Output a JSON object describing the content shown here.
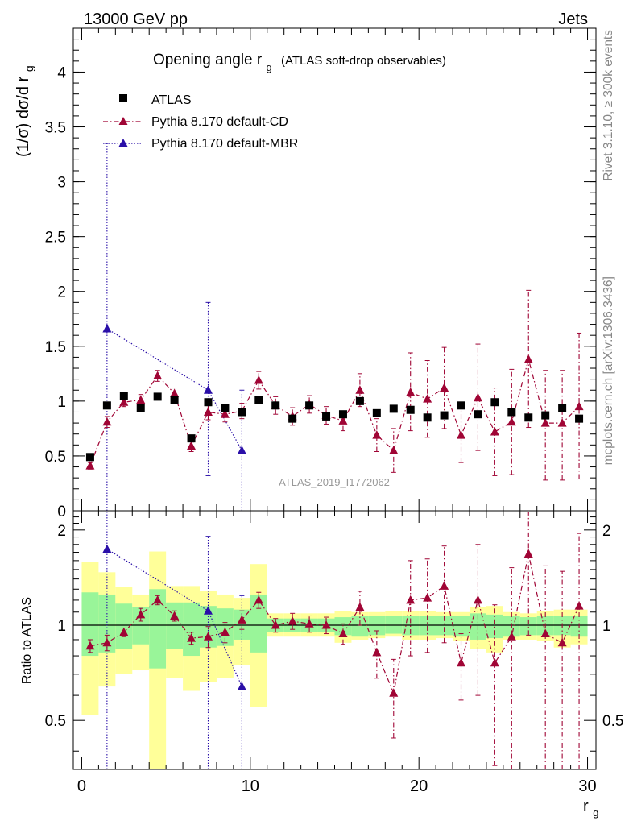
{
  "header": {
    "left_title": "13000 GeV pp",
    "right_title": "Jets",
    "side_label_top": "Rivet 3.1.10, ≥ 300k events",
    "side_label_bottom": "mcplots.cern.ch [arXiv:1306.3436]",
    "watermark": "ATLAS_2019_I1772062"
  },
  "chart_data": [
    {
      "panel": "main",
      "type": "scatter",
      "title_main": "Opening angle r",
      "title_sub": "g",
      "title_extra": "(ATLAS soft-drop observables)",
      "ylabel_main": "(1/σ) dσ/d r",
      "ylabel_sub": "g",
      "ylim": [
        0,
        4.4
      ],
      "yticks": [
        0,
        0.5,
        1,
        1.5,
        2,
        2.5,
        3,
        3.5,
        4
      ],
      "ytick_labels": [
        "0",
        "0.5",
        "1",
        "1.5",
        "2",
        "2.5",
        "3",
        "3.5",
        "4"
      ],
      "xlim": [
        -0.5,
        30.5
      ],
      "legend_position": "top-left",
      "series": [
        {
          "name": "ATLAS",
          "marker": "square",
          "color": "#000000",
          "x": [
            0.5,
            1.5,
            2.5,
            3.5,
            4.5,
            5.5,
            6.5,
            7.5,
            8.5,
            9.5,
            10.5,
            11.5,
            12.5,
            13.5,
            14.5,
            15.5,
            16.5,
            17.5,
            18.5,
            19.5,
            20.5,
            21.5,
            22.5,
            23.5,
            24.5,
            25.5,
            26.5,
            27.5,
            28.5,
            29.5
          ],
          "values": [
            0.49,
            0.96,
            1.05,
            0.94,
            1.04,
            1.01,
            0.66,
            0.99,
            0.94,
            0.9,
            1.01,
            0.96,
            0.84,
            0.96,
            0.86,
            0.88,
            1.0,
            0.89,
            0.93,
            0.92,
            0.85,
            0.87,
            0.96,
            0.88,
            0.99,
            0.9,
            0.85,
            0.87,
            0.94,
            0.84
          ]
        },
        {
          "name": "Pythia 8.170 default-CD",
          "marker": "triangle",
          "line": "dash-dot",
          "color": "#a00535",
          "x": [
            0.5,
            1.5,
            2.5,
            3.5,
            4.5,
            5.5,
            6.5,
            7.5,
            8.5,
            9.5,
            10.5,
            11.5,
            12.5,
            13.5,
            14.5,
            15.5,
            16.5,
            17.5,
            18.5,
            19.5,
            20.5,
            21.5,
            22.5,
            23.5,
            24.5,
            25.5,
            26.5,
            27.5,
            28.5,
            29.5
          ],
          "values": [
            0.41,
            0.81,
            0.99,
            1.01,
            1.23,
            1.07,
            0.59,
            0.9,
            0.88,
            0.91,
            1.19,
            0.96,
            0.86,
            0.97,
            0.87,
            0.82,
            1.1,
            0.69,
            0.55,
            1.08,
            1.02,
            1.12,
            0.69,
            1.03,
            0.72,
            0.81,
            1.38,
            0.8,
            0.8,
            0.95
          ],
          "err_low": [
            0.03,
            0.05,
            0.04,
            0.05,
            0.05,
            0.05,
            0.05,
            0.07,
            0.07,
            0.07,
            0.08,
            0.08,
            0.08,
            0.08,
            0.08,
            0.09,
            0.15,
            0.15,
            0.2,
            0.35,
            0.35,
            0.37,
            0.25,
            0.48,
            0.4,
            0.48,
            0.62,
            0.52,
            0.52,
            0.66
          ],
          "err_high": [
            0.03,
            0.05,
            0.04,
            0.05,
            0.05,
            0.05,
            0.05,
            0.07,
            0.07,
            0.07,
            0.08,
            0.08,
            0.08,
            0.08,
            0.08,
            0.09,
            0.15,
            0.15,
            0.2,
            0.36,
            0.35,
            0.37,
            0.25,
            0.49,
            0.4,
            0.48,
            0.63,
            0.48,
            0.48,
            0.67
          ]
        },
        {
          "name": "Pythia 8.170 default-MBR",
          "marker": "triangle",
          "line": "dotted",
          "color": "#2a0fa8",
          "x": [
            1.5,
            7.5,
            9.5
          ],
          "values": [
            1.66,
            1.1,
            0.55
          ],
          "err_low": [
            1.66,
            0.78,
            0.55
          ],
          "err_high": [
            1.69,
            0.8,
            0.55
          ]
        }
      ]
    },
    {
      "panel": "ratio",
      "type": "scatter",
      "ylabel": "Ratio to ATLAS",
      "ylim": [
        0.35,
        2.3
      ],
      "yscale": "log",
      "yticks": [
        0.5,
        1,
        2
      ],
      "ytick_labels": [
        "0.5",
        "1",
        "2"
      ],
      "xlim": [
        -0.5,
        30.5
      ],
      "xticks": [
        0,
        10,
        20,
        30
      ],
      "xtick_labels": [
        "0",
        "10",
        "20",
        "30"
      ],
      "xlabel_main": "r",
      "xlabel_sub": "g",
      "reference_line": 1,
      "bands": {
        "x": [
          0.5,
          1.5,
          2.5,
          3.5,
          4.5,
          5.5,
          6.5,
          7.5,
          8.5,
          9.5,
          10.5,
          11.5,
          12.5,
          13.5,
          14.5,
          15.5,
          16.5,
          17.5,
          18.5,
          19.5,
          20.5,
          21.5,
          22.5,
          23.5,
          24.5,
          25.5,
          26.5,
          27.5,
          28.5,
          29.5
        ],
        "inner_low": [
          0.8,
          0.82,
          0.84,
          0.87,
          0.73,
          0.84,
          0.8,
          0.85,
          0.86,
          0.9,
          0.82,
          0.95,
          0.95,
          0.95,
          0.95,
          0.93,
          0.92,
          0.93,
          0.94,
          0.93,
          0.93,
          0.93,
          0.92,
          0.9,
          0.91,
          0.92,
          0.93,
          0.93,
          0.93,
          0.92
        ],
        "inner_high": [
          1.27,
          1.25,
          1.17,
          1.14,
          1.3,
          1.18,
          1.18,
          1.15,
          1.13,
          1.12,
          1.25,
          1.05,
          1.05,
          1.05,
          1.05,
          1.06,
          1.07,
          1.07,
          1.07,
          1.07,
          1.07,
          1.07,
          1.07,
          1.09,
          1.08,
          1.07,
          1.06,
          1.07,
          1.07,
          1.07
        ],
        "outer_low": [
          0.52,
          0.64,
          0.7,
          0.72,
          0.35,
          0.68,
          0.62,
          0.66,
          0.68,
          0.75,
          0.55,
          0.92,
          0.92,
          0.92,
          0.92,
          0.88,
          0.9,
          0.91,
          0.92,
          0.9,
          0.9,
          0.91,
          0.89,
          0.84,
          0.82,
          0.9,
          0.9,
          0.89,
          0.85,
          0.87
        ],
        "outer_high": [
          1.58,
          1.47,
          1.32,
          1.25,
          1.71,
          1.33,
          1.33,
          1.28,
          1.25,
          1.22,
          1.56,
          1.09,
          1.09,
          1.09,
          1.09,
          1.11,
          1.1,
          1.1,
          1.11,
          1.11,
          1.11,
          1.1,
          1.1,
          1.14,
          1.15,
          1.1,
          1.09,
          1.11,
          1.12,
          1.12
        ]
      },
      "series": [
        {
          "name": "Pythia 8.170 default-CD",
          "marker": "triangle",
          "line": "dash-dot",
          "color": "#a00535",
          "x": [
            0.5,
            1.5,
            2.5,
            3.5,
            4.5,
            5.5,
            6.5,
            7.5,
            8.5,
            9.5,
            10.5,
            11.5,
            12.5,
            13.5,
            14.5,
            15.5,
            16.5,
            17.5,
            18.5,
            19.5,
            20.5,
            21.5,
            22.5,
            23.5,
            24.5,
            25.5,
            26.5,
            27.5,
            28.5,
            29.5
          ],
          "values": [
            0.86,
            0.88,
            0.95,
            1.08,
            1.2,
            1.07,
            0.91,
            0.92,
            0.95,
            1.04,
            1.2,
            1.0,
            1.03,
            1.01,
            1.0,
            0.94,
            1.14,
            0.82,
            0.61,
            1.2,
            1.22,
            1.33,
            0.76,
            1.2,
            0.76,
            0.92,
            1.68,
            0.94,
            0.88,
            1.15
          ],
          "err_low": [
            0.04,
            0.05,
            0.03,
            0.05,
            0.04,
            0.04,
            0.04,
            0.07,
            0.07,
            0.07,
            0.07,
            0.05,
            0.06,
            0.06,
            0.06,
            0.07,
            0.14,
            0.14,
            0.17,
            0.4,
            0.4,
            0.45,
            0.18,
            0.6,
            0.4,
            0.6,
            0.75,
            0.6,
            0.6,
            0.85
          ],
          "err_high": [
            0.04,
            0.05,
            0.03,
            0.05,
            0.04,
            0.04,
            0.04,
            0.07,
            0.07,
            0.07,
            0.07,
            0.05,
            0.06,
            0.06,
            0.06,
            0.07,
            0.14,
            0.14,
            0.17,
            0.4,
            0.4,
            0.45,
            0.18,
            0.6,
            0.4,
            0.6,
            0.6,
            0.6,
            0.6,
            0.8
          ]
        },
        {
          "name": "Pythia 8.170 default-MBR",
          "marker": "triangle",
          "line": "dotted",
          "color": "#2a0fa8",
          "x": [
            1.5,
            7.5,
            9.5
          ],
          "values": [
            1.74,
            1.11,
            0.64
          ],
          "err_low": [
            1.74,
            1.11,
            0.64
          ],
          "err_high": [
            1.7,
            0.8,
            0.6
          ]
        }
      ]
    }
  ]
}
